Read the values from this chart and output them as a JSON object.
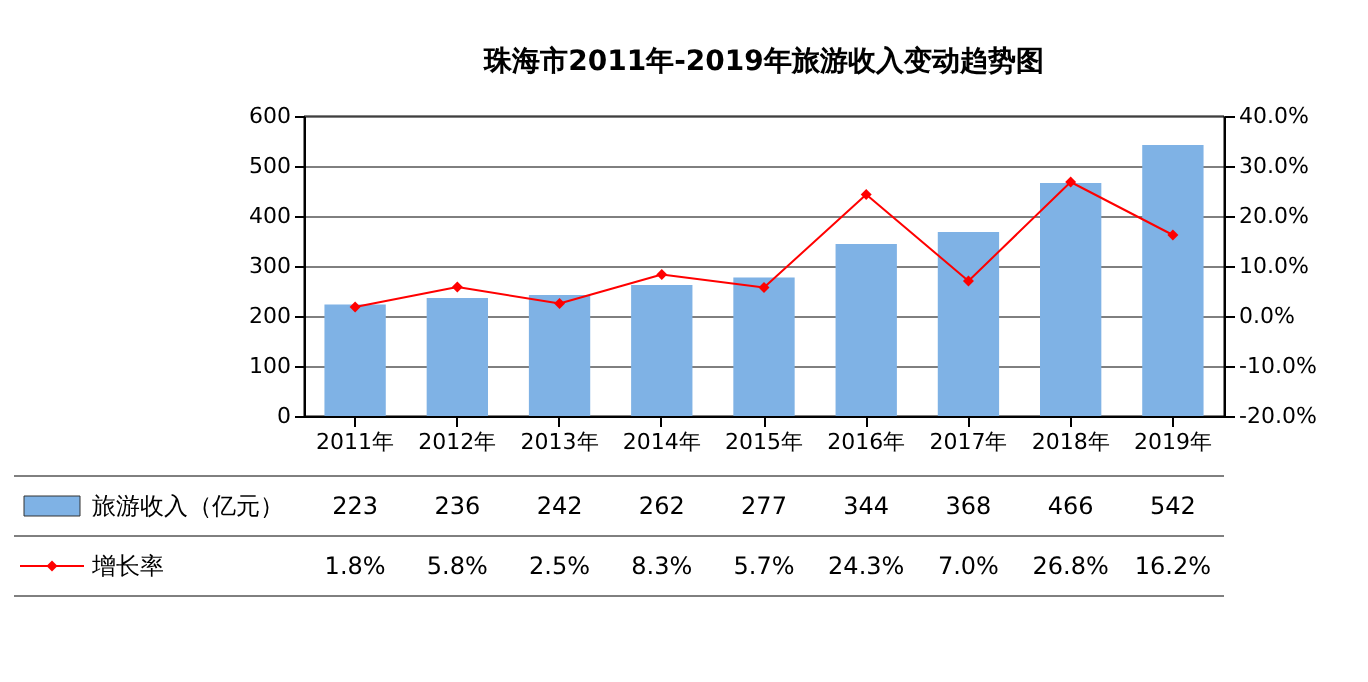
{
  "chart_data": {
    "type": "bar",
    "title": "珠海市2011年-2019年旅游收入变动趋势图",
    "categories": [
      "2011年",
      "2012年",
      "2013年",
      "2014年",
      "2015年",
      "2016年",
      "2017年",
      "2018年",
      "2019年"
    ],
    "series": [
      {
        "name": "旅游收入（亿元）",
        "color": "#7fb2e5",
        "values": [
          223,
          236,
          242,
          262,
          277,
          344,
          368,
          466,
          542
        ],
        "value_labels": [
          "223",
          "236",
          "242",
          "262",
          "277",
          "344",
          "368",
          "466",
          "542"
        ]
      },
      {
        "name": "增长率",
        "type": "line",
        "axis": "y2",
        "color": "#ff0000",
        "marker": "diamond",
        "values": [
          1.8,
          5.8,
          2.5,
          8.3,
          5.7,
          24.3,
          7.0,
          26.8,
          16.2
        ],
        "value_labels": [
          "1.8%",
          "5.8%",
          "2.5%",
          "8.3%",
          "5.7%",
          "24.3%",
          "7.0%",
          "26.8%",
          "16.2%"
        ]
      }
    ],
    "ylim": [
      0,
      600
    ],
    "yticks": [
      0,
      100,
      200,
      300,
      400,
      500,
      600
    ],
    "y2lim": [
      -20,
      40
    ],
    "y2ticks": [
      {
        "value": -20,
        "label": "-20.0%"
      },
      {
        "value": -10,
        "label": "-10.0%"
      },
      {
        "value": 0,
        "label": "0.0%"
      },
      {
        "value": 10,
        "label": "10.0%"
      },
      {
        "value": 20,
        "label": "20.0%"
      },
      {
        "value": 30,
        "label": "30.0%"
      },
      {
        "value": 40,
        "label": "40.0%"
      }
    ],
    "grid": "y",
    "legend": "bottom"
  }
}
